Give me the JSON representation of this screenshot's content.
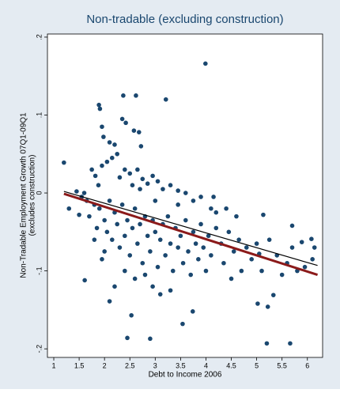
{
  "chart_data": {
    "type": "scatter",
    "title": "Non-tradable (excluding construction)",
    "x_label": "Debt to Income 2006",
    "y_label": [
      "Non-Tradable Employment Growth 07Q1-09Q1",
      "(excludes construction)"
    ],
    "xlim": [
      0.875,
      6.3
    ],
    "ylim": [
      -0.211,
      0.204
    ],
    "xticks": [
      1,
      1.5,
      2,
      2.5,
      3,
      3.5,
      4,
      4.5,
      5,
      5.5,
      6
    ],
    "yticks": [
      {
        "value": -0.2,
        "label": "-.2"
      },
      {
        "value": -0.1,
        "label": "-.1"
      },
      0,
      {
        "value": 0.1,
        "label": ".1"
      },
      {
        "value": 0.2,
        "label": ".2"
      }
    ],
    "color": "#1a476f",
    "x": [
      1.2,
      1.89,
      1.91,
      2.37,
      2.62,
      3.21,
      3.99,
      1.95,
      1.98,
      2.1,
      2.2,
      2.35,
      2.42,
      2.58,
      2.68,
      2.72,
      1.75,
      1.82,
      1.88,
      1.95,
      2.05,
      2.15,
      2.25,
      2.3,
      2.4,
      2.5,
      2.55,
      2.65,
      2.75,
      2.85,
      2.95,
      3.05,
      3.15,
      3.3,
      3.45,
      3.6,
      3.75,
      3.9,
      4.1,
      4.2,
      1.3,
      1.5,
      1.45,
      1.65,
      1.7,
      1.8,
      1.85,
      1.9,
      2.0,
      2.05,
      2.1,
      2.15,
      2.2,
      2.25,
      2.3,
      2.35,
      2.4,
      2.45,
      2.5,
      2.55,
      2.6,
      2.65,
      2.7,
      2.75,
      2.8,
      2.85,
      2.9,
      2.95,
      3.0,
      3.05,
      3.1,
      3.15,
      3.2,
      3.25,
      3.3,
      3.35,
      3.4,
      3.45,
      3.5,
      3.55,
      3.6,
      3.65,
      3.7,
      3.75,
      3.8,
      3.85,
      3.9,
      3.95,
      4.0,
      4.05,
      4.1,
      4.2,
      4.3,
      4.35,
      4.45,
      4.5,
      4.55,
      4.65,
      4.7,
      4.8,
      4.9,
      5.0,
      5.05,
      5.1,
      5.25,
      5.4,
      5.5,
      5.6,
      5.7,
      5.8,
      5.95,
      6.1,
      1.61,
      2.1,
      2.53,
      2.45,
      2.9,
      3.54,
      3.74,
      5.02,
      5.22,
      5.33,
      5.2,
      5.66,
      5.89,
      6.14,
      6.08,
      5.7,
      5.13,
      4.6,
      4.4,
      4.15,
      2.2,
      2.6,
      2.95,
      3.3,
      3.1,
      1.95,
      2.4,
      1.8,
      2.0,
      2.8,
      3.45,
      3.0,
      2.7,
      1.6,
      1.55
    ],
    "y": [
      0.039,
      0.113,
      0.108,
      0.125,
      0.125,
      0.12,
      0.166,
      0.085,
      0.072,
      0.065,
      0.062,
      0.095,
      0.09,
      0.08,
      0.078,
      0.06,
      0.03,
      0.022,
      0.01,
      0.035,
      0.04,
      0.045,
      0.05,
      0.02,
      0.03,
      0.025,
      0.01,
      0.03,
      0.018,
      0.012,
      0.022,
      0.015,
      0.005,
      0.01,
      0.003,
      0.0,
      -0.01,
      -0.005,
      -0.02,
      -0.025,
      -0.02,
      -0.028,
      0.002,
      -0.01,
      -0.03,
      -0.015,
      -0.045,
      -0.02,
      -0.035,
      -0.05,
      -0.01,
      -0.06,
      -0.025,
      -0.04,
      -0.07,
      -0.015,
      -0.055,
      -0.035,
      -0.08,
      -0.045,
      -0.02,
      -0.065,
      -0.04,
      -0.09,
      -0.03,
      -0.055,
      -0.075,
      -0.035,
      -0.05,
      -0.095,
      -0.06,
      -0.04,
      -0.08,
      -0.03,
      -0.065,
      -0.1,
      -0.045,
      -0.07,
      -0.055,
      -0.09,
      -0.035,
      -0.075,
      -0.105,
      -0.05,
      -0.065,
      -0.085,
      -0.04,
      -0.07,
      -0.1,
      -0.055,
      -0.08,
      -0.045,
      -0.065,
      -0.09,
      -0.05,
      -0.11,
      -0.075,
      -0.06,
      -0.1,
      -0.07,
      -0.085,
      -0.065,
      -0.078,
      -0.1,
      -0.06,
      -0.08,
      -0.105,
      -0.09,
      -0.07,
      -0.1,
      -0.095,
      -0.085,
      -0.112,
      -0.139,
      -0.157,
      -0.186,
      -0.187,
      -0.168,
      -0.152,
      -0.142,
      -0.146,
      -0.131,
      -0.193,
      -0.193,
      -0.063,
      -0.07,
      -0.059,
      -0.042,
      -0.028,
      -0.03,
      -0.02,
      -0.005,
      -0.12,
      -0.11,
      -0.12,
      -0.125,
      -0.13,
      -0.085,
      -0.1,
      -0.06,
      -0.075,
      -0.105,
      -0.015,
      -0.01,
      0.005,
      0.0,
      -0.005
    ],
    "lines": [
      {
        "color": "#000000",
        "x": [
          1.2,
          6.2
        ],
        "y": [
          0.002,
          -0.093
        ]
      },
      {
        "color": "#8b1a1a",
        "x": [
          1.2,
          6.2
        ],
        "y": [
          -0.001,
          -0.105
        ]
      }
    ]
  }
}
